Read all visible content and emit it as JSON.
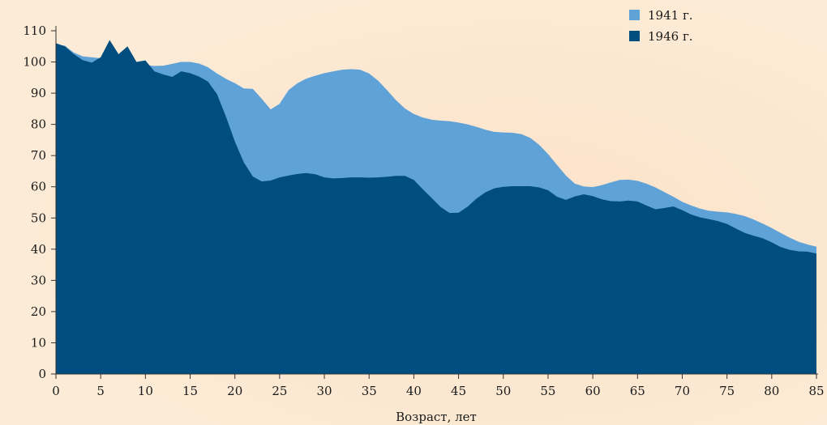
{
  "chart_data": {
    "type": "area",
    "xlabel": "Возраст, лет",
    "ylabel": "",
    "xlim": [
      0,
      85
    ],
    "ylim": [
      0,
      110
    ],
    "x_ticks": [
      0,
      5,
      10,
      15,
      20,
      25,
      30,
      35,
      40,
      45,
      50,
      55,
      60,
      65,
      70,
      75,
      80,
      85
    ],
    "y_ticks": [
      0,
      10,
      20,
      30,
      40,
      50,
      60,
      70,
      80,
      90,
      100,
      110
    ],
    "grid": false,
    "legend_position": "top-right",
    "series": [
      {
        "name": "1941 г.",
        "color": "#5ea2d8",
        "points": [
          [
            0,
            105.5
          ],
          [
            1,
            105.2
          ],
          [
            2,
            103
          ],
          [
            3,
            101.8
          ],
          [
            4,
            101.5
          ],
          [
            5,
            101.2
          ],
          [
            6,
            101
          ],
          [
            7,
            100
          ],
          [
            8,
            99.5
          ],
          [
            9,
            99
          ],
          [
            10,
            99
          ],
          [
            11,
            98.7
          ],
          [
            12,
            98.8
          ],
          [
            13,
            99.4
          ],
          [
            14,
            100
          ],
          [
            15,
            100
          ],
          [
            16,
            99.5
          ],
          [
            17,
            98.3
          ],
          [
            18,
            96.3
          ],
          [
            19,
            94.6
          ],
          [
            20,
            93.2
          ],
          [
            21,
            91.5
          ],
          [
            22,
            91.4
          ],
          [
            23,
            88.2
          ],
          [
            24,
            84.8
          ],
          [
            25,
            86.6
          ],
          [
            26,
            91
          ],
          [
            27,
            93.2
          ],
          [
            28,
            94.7
          ],
          [
            29,
            95.6
          ],
          [
            30,
            96.4
          ],
          [
            31,
            97
          ],
          [
            32,
            97.5
          ],
          [
            33,
            97.7
          ],
          [
            34,
            97.5
          ],
          [
            35,
            96.3
          ],
          [
            36,
            94
          ],
          [
            37,
            91
          ],
          [
            38,
            87.8
          ],
          [
            39,
            85.1
          ],
          [
            40,
            83.3
          ],
          [
            41,
            82.2
          ],
          [
            42,
            81.5
          ],
          [
            43,
            81.2
          ],
          [
            44,
            81
          ],
          [
            45,
            80.6
          ],
          [
            46,
            80
          ],
          [
            47,
            79.2
          ],
          [
            48,
            78.3
          ],
          [
            49,
            77.6
          ],
          [
            50,
            77.4
          ],
          [
            51,
            77.3
          ],
          [
            52,
            76.9
          ],
          [
            53,
            75.7
          ],
          [
            54,
            73.5
          ],
          [
            55,
            70.5
          ],
          [
            56,
            67
          ],
          [
            57,
            63.6
          ],
          [
            58,
            61
          ],
          [
            59,
            60.1
          ],
          [
            60,
            59.9
          ],
          [
            61,
            60.5
          ],
          [
            62,
            61.4
          ],
          [
            63,
            62.2
          ],
          [
            64,
            62.3
          ],
          [
            65,
            61.9
          ],
          [
            66,
            61
          ],
          [
            67,
            59.8
          ],
          [
            68,
            58.3
          ],
          [
            69,
            56.8
          ],
          [
            70,
            55.2
          ],
          [
            71,
            54
          ],
          [
            72,
            53
          ],
          [
            73,
            52.3
          ],
          [
            74,
            52
          ],
          [
            75,
            51.8
          ],
          [
            76,
            51.3
          ],
          [
            77,
            50.6
          ],
          [
            78,
            49.5
          ],
          [
            79,
            48.2
          ],
          [
            80,
            46.8
          ],
          [
            81,
            45.2
          ],
          [
            82,
            43.7
          ],
          [
            83,
            42.4
          ],
          [
            84,
            41.5
          ],
          [
            85,
            40.8
          ]
        ]
      },
      {
        "name": "1946 г.",
        "color": "#004d80",
        "points": [
          [
            0,
            106
          ],
          [
            1,
            105
          ],
          [
            2,
            102.5
          ],
          [
            3,
            100.6
          ],
          [
            4,
            99.8
          ],
          [
            5,
            101.5
          ],
          [
            6,
            107
          ],
          [
            7,
            102.5
          ],
          [
            8,
            105
          ],
          [
            9,
            100
          ],
          [
            10,
            100.5
          ],
          [
            11,
            97
          ],
          [
            12,
            96
          ],
          [
            13,
            95.2
          ],
          [
            14,
            97
          ],
          [
            15,
            96.4
          ],
          [
            16,
            95.3
          ],
          [
            17,
            93.7
          ],
          [
            18,
            89.7
          ],
          [
            19,
            82.5
          ],
          [
            20,
            74.5
          ],
          [
            21,
            67.8
          ],
          [
            22,
            63.3
          ],
          [
            23,
            61.7
          ],
          [
            24,
            62
          ],
          [
            25,
            63
          ],
          [
            26,
            63.6
          ],
          [
            27,
            64.1
          ],
          [
            28,
            64.4
          ],
          [
            29,
            64
          ],
          [
            30,
            63
          ],
          [
            31,
            62.7
          ],
          [
            32,
            62.8
          ],
          [
            33,
            63
          ],
          [
            34,
            63
          ],
          [
            35,
            62.9
          ],
          [
            36,
            63
          ],
          [
            37,
            63.2
          ],
          [
            38,
            63.5
          ],
          [
            39,
            63.5
          ],
          [
            40,
            62.2
          ],
          [
            41,
            59.2
          ],
          [
            42,
            56.4
          ],
          [
            43,
            53.5
          ],
          [
            44,
            51.6
          ],
          [
            45,
            51.7
          ],
          [
            46,
            53.6
          ],
          [
            47,
            56.2
          ],
          [
            48,
            58.2
          ],
          [
            49,
            59.5
          ],
          [
            50,
            60
          ],
          [
            51,
            60.2
          ],
          [
            52,
            60.2
          ],
          [
            53,
            60.2
          ],
          [
            54,
            59.8
          ],
          [
            55,
            58.9
          ],
          [
            56,
            56.8
          ],
          [
            57,
            55.8
          ],
          [
            58,
            56.9
          ],
          [
            59,
            57.6
          ],
          [
            60,
            57
          ],
          [
            61,
            56
          ],
          [
            62,
            55.4
          ],
          [
            63,
            55.3
          ],
          [
            64,
            55.6
          ],
          [
            65,
            55.3
          ],
          [
            66,
            54
          ],
          [
            67,
            52.8
          ],
          [
            68,
            53.2
          ],
          [
            69,
            53.7
          ],
          [
            70,
            52.5
          ],
          [
            71,
            51.1
          ],
          [
            72,
            50.2
          ],
          [
            73,
            49.6
          ],
          [
            74,
            49
          ],
          [
            75,
            48.1
          ],
          [
            76,
            46.6
          ],
          [
            77,
            45.2
          ],
          [
            78,
            44.3
          ],
          [
            79,
            43.5
          ],
          [
            80,
            42.2
          ],
          [
            81,
            40.7
          ],
          [
            82,
            39.8
          ],
          [
            83,
            39.3
          ],
          [
            84,
            39.2
          ],
          [
            85,
            38.6
          ]
        ]
      }
    ]
  }
}
